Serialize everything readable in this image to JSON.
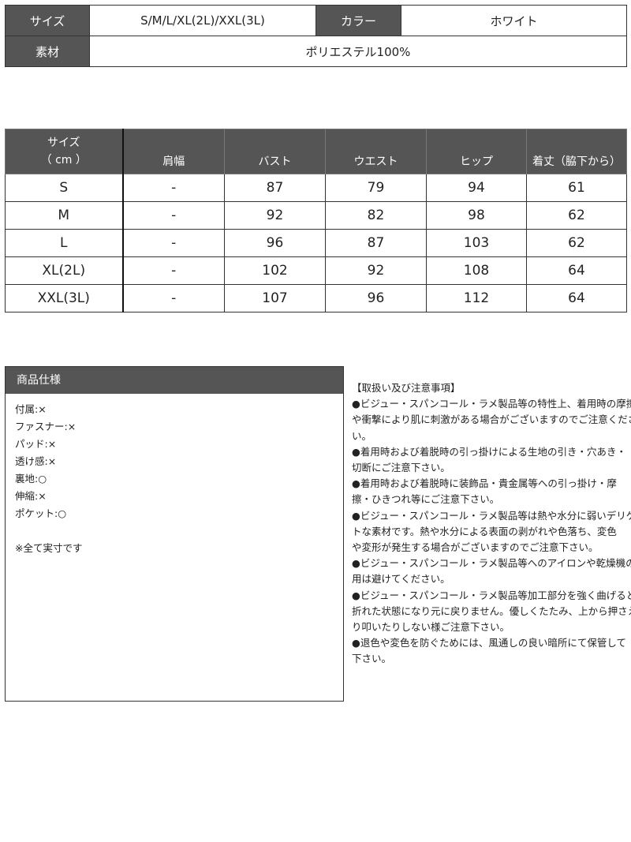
{
  "basic_info": {
    "size_label": "サイズ",
    "size_value": "S/M/L/XL(2L)/XXL(3L)",
    "color_label": "カラー",
    "color_value": "ホワイト",
    "material_label": "素材",
    "material_value": "ポリエステル100%"
  },
  "size_table": {
    "headers": [
      "サイズ\n（ cm ）",
      "肩幅",
      "バスト",
      "ウエスト",
      "ヒップ",
      "着丈（脇下から）"
    ],
    "header_size_line1": "サイズ",
    "header_size_line2": "（ cm ）",
    "rows": [
      [
        "S",
        "-",
        "87",
        "79",
        "94",
        "61"
      ],
      [
        "M",
        "-",
        "92",
        "82",
        "98",
        "62"
      ],
      [
        "L",
        "-",
        "96",
        "87",
        "103",
        "62"
      ],
      [
        "XL(2L)",
        "-",
        "102",
        "92",
        "108",
        "64"
      ],
      [
        "XXL(3L)",
        "-",
        "107",
        "96",
        "112",
        "64"
      ]
    ]
  },
  "spec": {
    "title": "商品仕様",
    "items": [
      "付属:×",
      "ファスナー:×",
      "パッド:×",
      "透け感:×",
      "裏地:○",
      "伸縮:×",
      "ポケット:○"
    ],
    "note": "※全て実寸です"
  },
  "notes": {
    "lines": [
      "【取扱い及び注意事項】",
      "●ビジュー・スパンコール・ラメ製品等の特性上、着用時の摩擦",
      "や衝撃により肌に刺激がある場合がございますのでご注意くださ",
      "い。",
      "●着用時および着脱時の引っ掛けによる生地の引き・穴あき・",
      "切断にご注意下さい。",
      "●着用時および着脱時に装飾品・貴金属等への引っ掛け・摩",
      "擦・ひきつれ等にご注意下さい。",
      "●ビジュー・スパンコール・ラメ製品等は熱や水分に弱いデリケー",
      "トな素材です。熱や水分による表面の剥がれや色落ち、変色",
      "や変形が発生する場合がございますのでご注意下さい。",
      "●ビジュー・スパンコール・ラメ製品等へのアイロンや乾燥機の使",
      "用は避けてください。",
      "●ビジュー・スパンコール・ラメ製品等加工部分を強く曲げると",
      "折れた状態になり元に戻りません。優しくたたみ、上から押さえた",
      "り叩いたりしない様ご注意下さい。",
      "●退色や変色を防ぐためには、風通しの良い暗所にて保管して",
      "下さい。"
    ]
  },
  "colors": {
    "header_bg": "#555555",
    "border": "#333333"
  }
}
